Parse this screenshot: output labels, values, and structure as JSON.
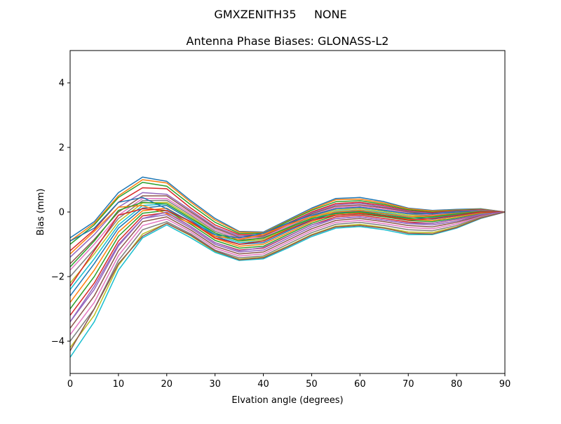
{
  "figure": {
    "suptitle": "GMXZENITH35     NONE"
  },
  "chart_data": {
    "type": "line",
    "title": "Antenna Phase Biases: GLONASS-L2",
    "xlabel": "Elvation angle (degrees)",
    "ylabel": "Bias (mm)",
    "xlim": [
      0,
      90
    ],
    "ylim": [
      -5,
      5
    ],
    "xticks": [
      0,
      10,
      20,
      30,
      40,
      50,
      60,
      70,
      80,
      90
    ],
    "yticks": [
      -4,
      -2,
      0,
      2,
      4
    ],
    "grid": false,
    "legend": "none",
    "x": [
      0,
      5,
      10,
      15,
      20,
      25,
      30,
      35,
      40,
      45,
      50,
      55,
      60,
      65,
      70,
      75,
      80,
      85,
      90
    ],
    "colors": [
      "#1f77b4",
      "#ff7f0e",
      "#2ca02c",
      "#d62728",
      "#9467bd",
      "#8c564b",
      "#e377c2",
      "#7f7f7f",
      "#bcbd22",
      "#17becf"
    ],
    "series": [
      {
        "values": [
          -0.8,
          -0.3,
          0.6,
          1.08,
          0.95,
          0.35,
          -0.2,
          -0.6,
          -0.62,
          -0.25,
          0.12,
          0.42,
          0.45,
          0.32,
          0.12,
          0.05,
          0.08,
          0.1,
          0.0
        ]
      },
      {
        "values": [
          -0.9,
          -0.35,
          0.5,
          1.0,
          0.9,
          0.3,
          -0.25,
          -0.62,
          -0.64,
          -0.28,
          0.08,
          0.38,
          0.4,
          0.28,
          0.1,
          0.03,
          0.06,
          0.09,
          0.0
        ]
      },
      {
        "values": [
          -1.0,
          -0.4,
          0.45,
          0.92,
          0.8,
          0.22,
          -0.32,
          -0.66,
          -0.66,
          -0.3,
          0.05,
          0.32,
          0.35,
          0.24,
          0.07,
          0.0,
          0.05,
          0.08,
          0.0
        ]
      },
      {
        "values": [
          -1.2,
          -0.55,
          0.3,
          0.75,
          0.72,
          0.12,
          -0.4,
          -0.7,
          -0.7,
          -0.35,
          0.0,
          0.26,
          0.3,
          0.2,
          0.04,
          -0.02,
          0.04,
          0.07,
          0.0
        ]
      },
      {
        "values": [
          -1.4,
          -0.7,
          0.15,
          0.6,
          0.55,
          0.05,
          -0.46,
          -0.74,
          -0.72,
          -0.38,
          -0.03,
          0.22,
          0.27,
          0.16,
          0.02,
          -0.05,
          0.03,
          0.06,
          0.0
        ]
      },
      {
        "values": [
          -1.6,
          -0.85,
          0.0,
          0.5,
          0.5,
          0.0,
          -0.5,
          -0.78,
          -0.75,
          -0.4,
          -0.06,
          0.18,
          0.22,
          0.13,
          0.0,
          -0.07,
          0.02,
          0.05,
          0.0
        ]
      },
      {
        "values": [
          -1.8,
          -1.0,
          -0.1,
          0.42,
          0.42,
          -0.05,
          -0.55,
          -0.82,
          -0.78,
          -0.44,
          -0.1,
          0.14,
          0.18,
          0.1,
          -0.03,
          -0.1,
          0.0,
          0.04,
          0.0
        ]
      },
      {
        "values": [
          -2.0,
          -1.15,
          -0.2,
          0.35,
          0.36,
          -0.1,
          -0.6,
          -0.86,
          -0.82,
          -0.48,
          -0.14,
          0.1,
          0.14,
          0.06,
          -0.06,
          -0.12,
          -0.02,
          0.03,
          0.0
        ]
      },
      {
        "values": [
          -2.2,
          -1.3,
          -0.3,
          0.28,
          0.3,
          -0.15,
          -0.65,
          -0.9,
          -0.86,
          -0.52,
          -0.18,
          0.06,
          0.1,
          0.02,
          -0.1,
          -0.15,
          -0.05,
          0.02,
          0.0
        ]
      },
      {
        "values": [
          -2.4,
          -1.45,
          -0.4,
          0.2,
          0.25,
          -0.2,
          -0.7,
          -0.95,
          -0.9,
          -0.56,
          -0.22,
          0.02,
          0.06,
          -0.02,
          -0.14,
          -0.18,
          -0.08,
          0.0,
          0.0
        ]
      },
      {
        "values": [
          -2.6,
          -1.6,
          -0.5,
          0.12,
          0.2,
          -0.25,
          -0.75,
          -1.0,
          -0.95,
          -0.6,
          -0.26,
          -0.02,
          0.02,
          -0.06,
          -0.18,
          -0.22,
          -0.12,
          -0.02,
          0.0
        ]
      },
      {
        "values": [
          -2.8,
          -1.8,
          -0.62,
          0.04,
          0.12,
          -0.32,
          -0.82,
          -1.06,
          -1.0,
          -0.65,
          -0.3,
          -0.06,
          -0.02,
          -0.1,
          -0.22,
          -0.26,
          -0.15,
          -0.04,
          0.0
        ]
      },
      {
        "values": [
          -3.0,
          -2.0,
          -0.75,
          -0.04,
          0.05,
          -0.38,
          -0.88,
          -1.12,
          -1.06,
          -0.7,
          -0.35,
          -0.1,
          -0.06,
          -0.15,
          -0.26,
          -0.3,
          -0.19,
          -0.06,
          0.0
        ]
      },
      {
        "values": [
          -3.2,
          -2.2,
          -0.9,
          -0.12,
          -0.02,
          -0.45,
          -0.95,
          -1.18,
          -1.12,
          -0.76,
          -0.4,
          -0.15,
          -0.1,
          -0.2,
          -0.31,
          -0.35,
          -0.23,
          -0.08,
          0.0
        ]
      },
      {
        "values": [
          -3.4,
          -2.4,
          -1.05,
          -0.2,
          -0.08,
          -0.5,
          -1.0,
          -1.24,
          -1.18,
          -0.82,
          -0.46,
          -0.2,
          -0.15,
          -0.25,
          -0.36,
          -0.4,
          -0.28,
          -0.1,
          0.0
        ]
      },
      {
        "values": [
          -3.6,
          -2.6,
          -1.2,
          -0.3,
          -0.15,
          -0.56,
          -1.06,
          -1.3,
          -1.24,
          -0.88,
          -0.52,
          -0.26,
          -0.2,
          -0.3,
          -0.42,
          -0.46,
          -0.32,
          -0.12,
          0.0
        ]
      },
      {
        "values": [
          -3.8,
          -2.8,
          -1.35,
          -0.42,
          -0.22,
          -0.62,
          -1.12,
          -1.36,
          -1.3,
          -0.94,
          -0.58,
          -0.32,
          -0.26,
          -0.36,
          -0.48,
          -0.52,
          -0.37,
          -0.14,
          0.0
        ]
      },
      {
        "values": [
          -4.0,
          -3.0,
          -1.5,
          -0.55,
          -0.3,
          -0.68,
          -1.18,
          -1.42,
          -1.36,
          -1.0,
          -0.64,
          -0.38,
          -0.32,
          -0.42,
          -0.55,
          -0.58,
          -0.42,
          -0.16,
          0.0
        ]
      },
      {
        "values": [
          -4.2,
          -3.2,
          -1.65,
          -0.68,
          -0.35,
          -0.74,
          -1.22,
          -1.46,
          -1.4,
          -1.06,
          -0.7,
          -0.44,
          -0.38,
          -0.48,
          -0.62,
          -0.64,
          -0.46,
          -0.18,
          0.0
        ]
      },
      {
        "values": [
          -4.5,
          -3.4,
          -1.8,
          -0.8,
          -0.4,
          -0.8,
          -1.25,
          -1.5,
          -1.45,
          -1.12,
          -0.76,
          -0.5,
          -0.45,
          -0.55,
          -0.7,
          -0.7,
          -0.5,
          -0.2,
          0.0
        ]
      },
      {
        "values": [
          -0.9,
          -0.5,
          0.3,
          0.45,
          0.1,
          -0.3,
          -0.7,
          -0.8,
          -0.65,
          -0.35,
          -0.1,
          0.1,
          0.15,
          0.05,
          -0.05,
          -0.05,
          0.0,
          0.03,
          0.0
        ]
      },
      {
        "values": [
          -1.3,
          -0.6,
          0.15,
          0.2,
          -0.05,
          -0.35,
          -0.75,
          -0.85,
          -0.7,
          -0.4,
          -0.15,
          0.0,
          0.05,
          -0.05,
          -0.15,
          -0.12,
          -0.05,
          0.02,
          0.0
        ]
      },
      {
        "values": [
          -1.7,
          -0.9,
          0.05,
          0.3,
          0.25,
          -0.2,
          -0.65,
          -0.9,
          -0.8,
          -0.5,
          -0.2,
          -0.05,
          0.0,
          -0.1,
          -0.2,
          -0.15,
          -0.06,
          0.01,
          0.0
        ]
      },
      {
        "values": [
          -2.3,
          -1.2,
          -0.1,
          0.1,
          0.05,
          -0.3,
          -0.8,
          -1.0,
          -0.9,
          -0.55,
          -0.25,
          -0.1,
          -0.05,
          -0.12,
          -0.25,
          -0.2,
          -0.1,
          0.0,
          0.0
        ]
      },
      {
        "values": [
          -3.4,
          -2.3,
          -1.0,
          -0.2,
          0.0,
          -0.45,
          -0.95,
          -1.2,
          -1.1,
          -0.75,
          -0.4,
          -0.2,
          -0.15,
          -0.25,
          -0.35,
          -0.35,
          -0.22,
          -0.07,
          0.0
        ]
      },
      {
        "values": [
          -4.3,
          -3.0,
          -1.6,
          -0.75,
          -0.35,
          -0.72,
          -1.2,
          -1.48,
          -1.42,
          -1.08,
          -0.72,
          -0.46,
          -0.42,
          -0.5,
          -0.66,
          -0.68,
          -0.48,
          -0.19,
          0.0
        ]
      }
    ]
  }
}
